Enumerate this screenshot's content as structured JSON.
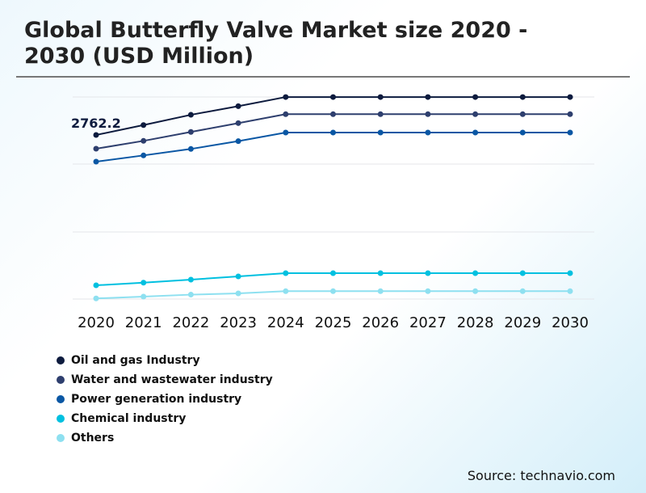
{
  "chart_data": {
    "type": "line",
    "title": "Global Butterfly Valve Market size 2020 - 2030 (USD Million)",
    "categories": [
      "2020",
      "2021",
      "2022",
      "2023",
      "2024",
      "2025",
      "2026",
      "2027",
      "2028",
      "2029",
      "2030"
    ],
    "annotation": "2762.2",
    "grid": true,
    "legend_placement": "bottom-left",
    "ylim": [
      0,
      3402
    ],
    "series": [
      {
        "name": "Oil and gas Industry",
        "color": "#0d1b3e",
        "values": [
          2762.2,
          2929,
          3102,
          3247,
          3401,
          3401,
          3401,
          3401,
          3401,
          3401,
          3401
        ]
      },
      {
        "name": "Water and wastewater industry",
        "color": "#2e3f6e",
        "values": [
          2531,
          2663,
          2813,
          2962,
          3112,
          3112,
          3112,
          3112,
          3112,
          3112,
          3112
        ]
      },
      {
        "name": "Power generation industry",
        "color": "#0a57a4",
        "values": [
          2313,
          2418,
          2527,
          2658,
          2803,
          2803,
          2803,
          2803,
          2803,
          2803,
          2803
        ]
      },
      {
        "name": "Chemical industry",
        "color": "#00c0e0",
        "values": [
          231,
          276,
          327,
          381,
          435,
          435,
          435,
          435,
          435,
          435,
          435
        ]
      },
      {
        "name": "Others",
        "color": "#8ee0f0",
        "values": [
          10,
          41,
          74,
          95,
          132,
          132,
          132,
          132,
          132,
          132,
          132
        ]
      }
    ]
  },
  "source": "Source: technavio.com"
}
